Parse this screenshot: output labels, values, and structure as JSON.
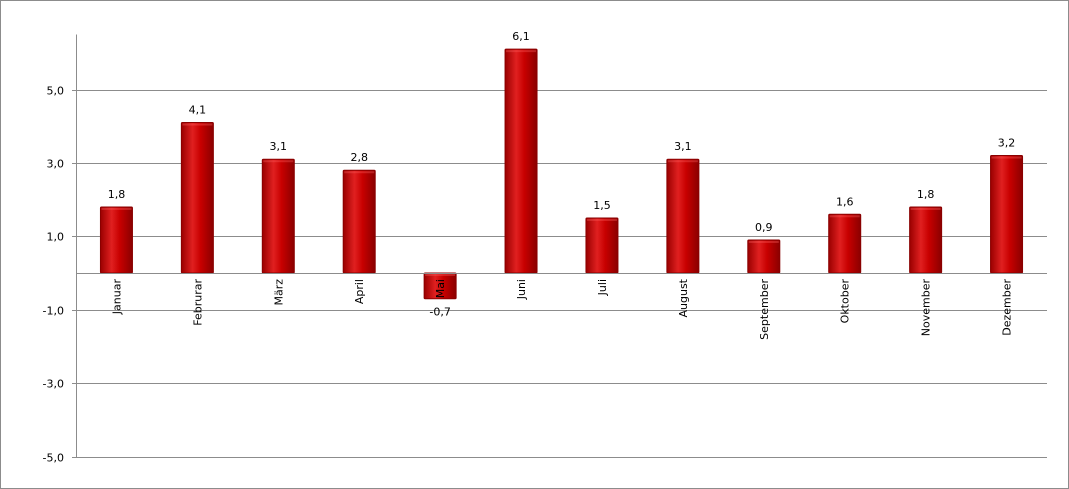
{
  "chart_data": {
    "type": "bar",
    "categories": [
      "Januar",
      "Februrar",
      "März",
      "April",
      "Mai",
      "Juni",
      "Juli",
      "August",
      "September",
      "Oktober",
      "November",
      "Dezember"
    ],
    "series": [
      {
        "values": [
          1.8,
          4.1,
          3.1,
          2.8,
          -0.7,
          6.1,
          1.5,
          3.1,
          0.9,
          1.6,
          1.8,
          3.2
        ],
        "labels": [
          "1,8",
          "4,1",
          "3,1",
          "2,8",
          "-0,7",
          "6,1",
          "1,5",
          "3,1",
          "0,9",
          "1,6",
          "1,8",
          "3,2"
        ]
      }
    ],
    "yticks": [
      5,
      3,
      1,
      -1,
      -3,
      -5
    ],
    "ytick_labels": [
      "5,0",
      "3,0",
      "1,0",
      "-1,0",
      "-3,0",
      "-5,0"
    ],
    "ylim": [
      -5,
      6.5
    ],
    "grid": true,
    "legend": "none",
    "colors": {
      "bar": "#c00000",
      "bar_edge": "#8a0000",
      "bar_highlight": "#ff6060"
    },
    "title": "",
    "xlabel": "",
    "ylabel": ""
  }
}
